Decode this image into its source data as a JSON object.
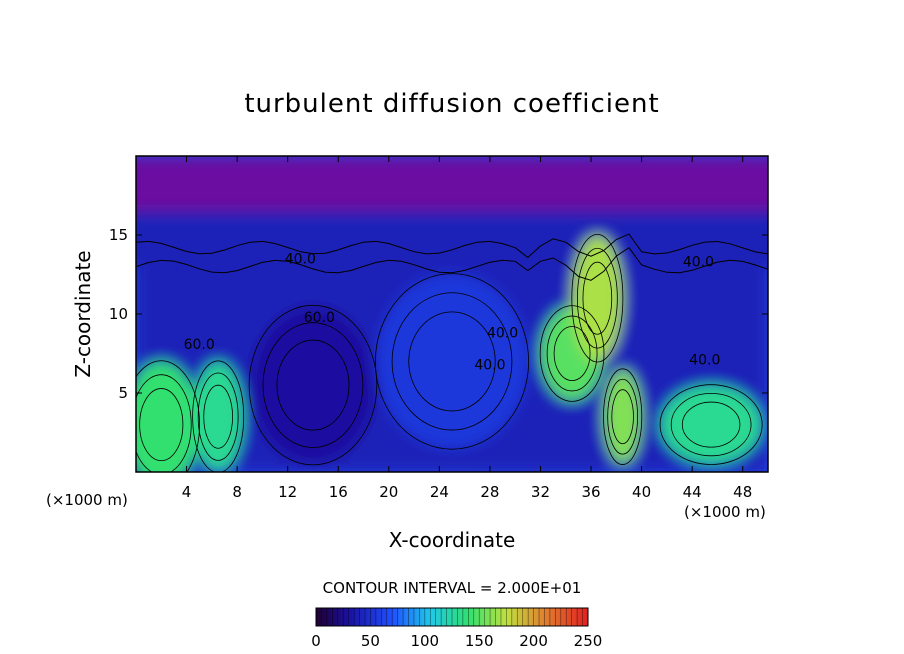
{
  "chart_data": {
    "type": "heatmap",
    "title": "turbulent diffusion coefficient",
    "xlabel": "X-coordinate",
    "ylabel": "Z-coordinate",
    "x_unit": "(×1000 m)",
    "y_unit": "(×1000 m)",
    "xlim": [
      0,
      50
    ],
    "ylim": [
      0,
      20
    ],
    "x_ticks": [
      4,
      8,
      12,
      16,
      20,
      24,
      28,
      32,
      36,
      40,
      44,
      48
    ],
    "y_ticks": [
      5,
      10,
      15
    ],
    "contour_interval_text": "CONTOUR INTERVAL = 2.000E+01",
    "contour_labels": [
      {
        "text": "40.0",
        "x": 13.0,
        "z": 13.2
      },
      {
        "text": "60.0",
        "x": 14.5,
        "z": 9.5
      },
      {
        "text": "60.0",
        "x": 5.0,
        "z": 7.8
      },
      {
        "text": "40.0",
        "x": 29.0,
        "z": 8.5
      },
      {
        "text": "40.0",
        "x": 28.0,
        "z": 6.5
      },
      {
        "text": "40.0",
        "x": 45.0,
        "z": 6.8
      },
      {
        "text": "40.0",
        "x": 44.5,
        "z": 13.0
      }
    ],
    "colorbar": {
      "min": 0,
      "max": 250,
      "ticks": [
        0,
        50,
        100,
        150,
        200,
        250
      ]
    },
    "field_features": [
      {
        "kind": "background",
        "value": 0
      },
      {
        "kind": "stratosphere_layer",
        "z_from": 14,
        "z_to": 20,
        "value": 0
      },
      {
        "kind": "upper_shear_band",
        "z_from": 13,
        "z_to": 16.5,
        "value": 40
      },
      {
        "kind": "eddy",
        "x": 14,
        "z": 5.5,
        "rx": 5,
        "rz": 5,
        "value": 30
      },
      {
        "kind": "eddy",
        "x": 25,
        "z": 7,
        "rx": 6,
        "rz": 5.5,
        "value": 55
      },
      {
        "kind": "eddy",
        "x": 34.5,
        "z": 7.5,
        "rx": 2.5,
        "rz": 3,
        "value": 150
      },
      {
        "kind": "eddy",
        "x": 45.5,
        "z": 3,
        "rx": 4,
        "rz": 2.5,
        "value": 130
      },
      {
        "kind": "eddy",
        "x": 2,
        "z": 3,
        "rx": 3,
        "rz": 4,
        "value": 140
      },
      {
        "kind": "eddy",
        "x": 6.5,
        "z": 3.5,
        "rx": 2,
        "rz": 3.5,
        "value": 130
      },
      {
        "kind": "plume",
        "x": 36.5,
        "z": 11,
        "rx": 2,
        "rz": 4,
        "value": 170
      },
      {
        "kind": "plume",
        "x": 38.5,
        "z": 3.5,
        "rx": 1.5,
        "rz": 3,
        "value": 160
      }
    ]
  }
}
